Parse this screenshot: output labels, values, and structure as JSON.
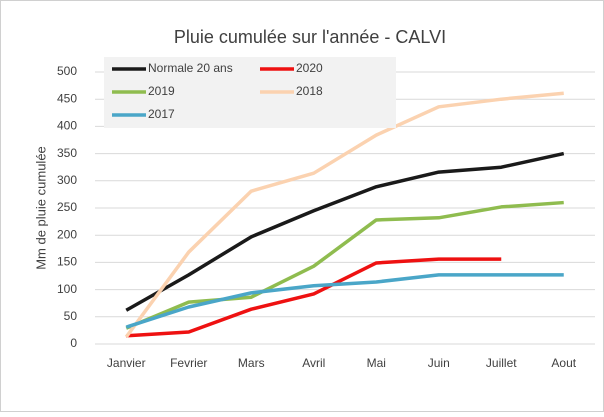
{
  "chart_data": {
    "type": "line",
    "title": "Pluie cumulée sur l'année - CALVI",
    "y_label": "Mm de pluie cumulée",
    "categories": [
      "Janvier",
      "Fevrier",
      "Mars",
      "Avril",
      "Mai",
      "Juin",
      "Juillet",
      "Aout"
    ],
    "series": [
      {
        "name": "Normale 20  ans",
        "color": "#1a1a1a",
        "values": [
          62,
          127,
          197,
          245,
          289,
          316,
          325,
          350
        ]
      },
      {
        "name": "2020",
        "color": "#ee1111",
        "values": [
          15,
          22,
          64,
          92,
          149,
          156,
          156,
          null
        ]
      },
      {
        "name": "2019",
        "color": "#8fbc4f",
        "values": [
          29,
          77,
          86,
          143,
          228,
          232,
          252,
          260
        ]
      },
      {
        "name": "2018",
        "color": "#fbd2b0",
        "values": [
          13,
          169,
          281,
          314,
          384,
          436,
          450,
          461
        ]
      },
      {
        "name": "2017",
        "color": "#4aa6c8",
        "values": [
          31,
          68,
          94,
          107,
          114,
          127,
          127,
          127
        ]
      }
    ],
    "ylim": [
      0,
      500
    ],
    "yticks": [
      0,
      50,
      100,
      150,
      200,
      250,
      300,
      350,
      400,
      450,
      500
    ],
    "grid": true,
    "legend": "upper left"
  }
}
